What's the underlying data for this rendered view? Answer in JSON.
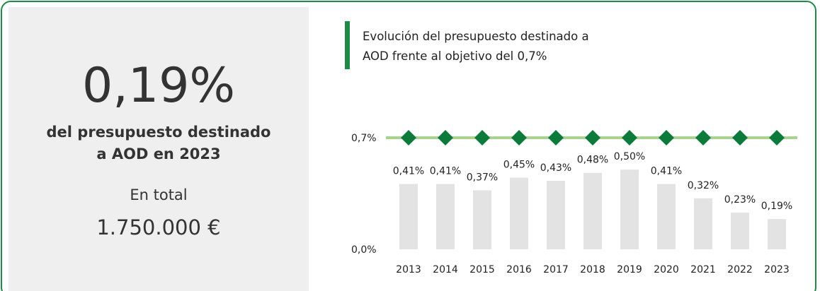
{
  "panel": {
    "headline": "0,19%",
    "subtitle": "del presupuesto destinado a AOD en 2023",
    "total_label": "En total",
    "total_value": "1.750.000 €"
  },
  "chart_data": {
    "type": "bar",
    "title": "Evolución del presupuesto destinado a AOD frente al objetivo del 0,7%",
    "categories": [
      "2013",
      "2014",
      "2015",
      "2016",
      "2017",
      "2018",
      "2019",
      "2020",
      "2021",
      "2022",
      "2023"
    ],
    "values": [
      0.41,
      0.41,
      0.37,
      0.45,
      0.43,
      0.48,
      0.5,
      0.41,
      0.32,
      0.23,
      0.19
    ],
    "value_labels": [
      "0,41%",
      "0,41%",
      "0,37%",
      "0,45%",
      "0,43%",
      "0,48%",
      "0,50%",
      "0,41%",
      "0,32%",
      "0,23%",
      "0,19%"
    ],
    "color": "#e3e3e3",
    "target": {
      "values": [
        0.7,
        0.7,
        0.7,
        0.7,
        0.7,
        0.7,
        0.7,
        0.7,
        0.7,
        0.7,
        0.7
      ],
      "line_color": "#a8d58e",
      "marker_color": "#0b7a3b"
    },
    "ylim": [
      0,
      0.7
    ],
    "yticks": [
      {
        "value": 0,
        "label": "0,0%"
      },
      {
        "value": 0.7,
        "label": "0,7%"
      }
    ],
    "grid": false
  }
}
